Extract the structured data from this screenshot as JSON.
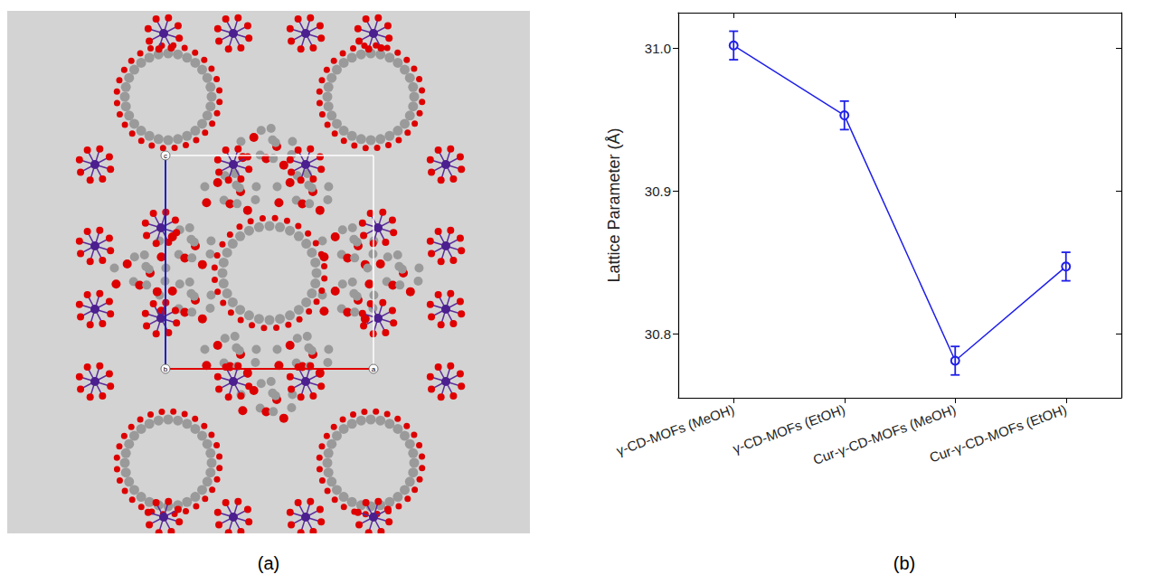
{
  "image_panel": {
    "label": "(a)",
    "axis_letters": [
      "c",
      "b",
      "a"
    ]
  },
  "chart_data": {
    "type": "line",
    "panel_label": "(b)",
    "y_label": "Lattice Parameter (Å)",
    "categories": [
      "γ-CD-MOFs (MeOH)",
      "γ-CD-MOFs (EtOH)",
      "Cur-γ-CD-MOFs (MeOH)",
      "Cur-γ-CD-MOFs (EtOH)"
    ],
    "values": [
      31.002,
      30.953,
      30.781,
      30.847
    ],
    "errors": [
      0.01,
      0.01,
      0.01,
      0.01
    ],
    "color": "#1f1fe8",
    "marker": "emptyCircle",
    "line_style": "solid",
    "ylim": [
      30.755,
      31.025
    ],
    "yticks": [
      30.8,
      30.9,
      {
        "value": 31,
        "label": "31.0"
      }
    ],
    "grid": false
  }
}
